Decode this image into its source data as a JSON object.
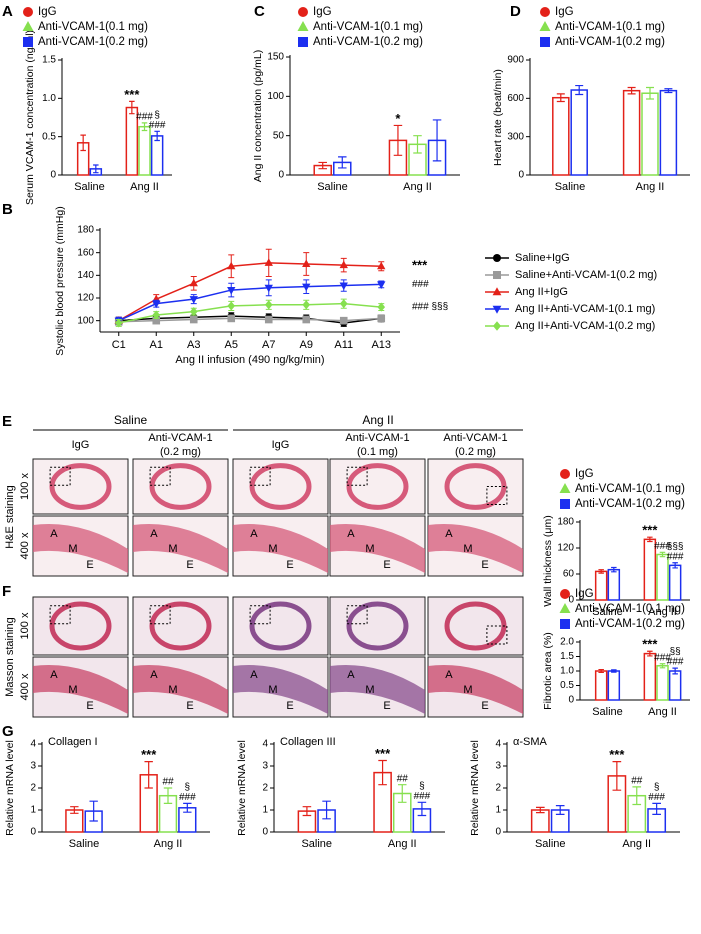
{
  "panel_labels": [
    "A",
    "B",
    "C",
    "D",
    "E",
    "F",
    "G"
  ],
  "histology": {
    "groups": [
      "Saline",
      "Ang II"
    ],
    "columns": [
      [
        "IgG"
      ],
      [
        "Anti-VCAM-1",
        "(0.2 mg)"
      ],
      [
        "IgG"
      ],
      [
        "Anti-VCAM-1",
        "(0.1 mg)"
      ],
      [
        "Anti-VCAM-1",
        "(0.2 mg)"
      ]
    ],
    "magnifications": [
      "100 x",
      "400 x"
    ],
    "stains": [
      "H&E staining",
      "Masson staining"
    ],
    "layers": [
      "A",
      "M",
      "E"
    ]
  },
  "chart_data": [
    {
      "type": "bar",
      "ylabel": "Serum VCAM-1 concentration (ng/ml)",
      "categories": [
        "Saline",
        "Ang II"
      ],
      "ylim": [
        0,
        1.5
      ],
      "yticks": [
        0,
        0.5,
        {
          "value": 1,
          "label": "1.0"
        },
        1.5
      ],
      "legend": "top",
      "series": [
        {
          "name": "IgG",
          "color": "#e32119",
          "marker": "circle",
          "values": [
            0.42,
            0.88
          ],
          "errors": [
            0.1,
            0.08
          ],
          "annotations": [
            null,
            "***"
          ]
        },
        {
          "name": "Anti-VCAM-1(0.1 mg)",
          "color": "#86e04f",
          "marker": "triangle",
          "values": [
            null,
            0.63
          ],
          "errors": [
            null,
            0.05
          ],
          "annotations": [
            null,
            "###"
          ]
        },
        {
          "name": "Anti-VCAM-1(0.2 mg)",
          "color": "#1c2ff0",
          "marker": "square",
          "values": [
            0.08,
            0.51
          ],
          "errors": [
            0.05,
            0.06
          ],
          "annotations": [
            null,
            [
              "§",
              "###"
            ]
          ]
        }
      ]
    },
    {
      "type": "bar",
      "ylabel": "Ang II concentration (pg/mL)",
      "categories": [
        "Saline",
        "Ang II"
      ],
      "ylim": [
        0,
        150
      ],
      "yticks": [
        0,
        50,
        100,
        150
      ],
      "legend": "top",
      "series": [
        {
          "name": "IgG",
          "color": "#e32119",
          "marker": "circle",
          "values": [
            12,
            44
          ],
          "errors": [
            4,
            19
          ],
          "annotations": [
            null,
            "*"
          ]
        },
        {
          "name": "Anti-VCAM-1(0.1 mg)",
          "color": "#86e04f",
          "marker": "triangle",
          "values": [
            null,
            39
          ],
          "errors": [
            null,
            11
          ],
          "annotations": [
            null,
            null
          ]
        },
        {
          "name": "Anti-VCAM-1(0.2 mg)",
          "color": "#1c2ff0",
          "marker": "square",
          "values": [
            16,
            44
          ],
          "errors": [
            7,
            26
          ],
          "annotations": [
            null,
            null
          ]
        }
      ]
    },
    {
      "type": "bar",
      "ylabel": "Heart rate (beat/min)",
      "categories": [
        "Saline",
        "Ang II"
      ],
      "ylim": [
        0,
        900
      ],
      "yticks": [
        0,
        300,
        600,
        900
      ],
      "legend": "top",
      "series": [
        {
          "name": "IgG",
          "color": "#e32119",
          "marker": "circle",
          "values": [
            605,
            660
          ],
          "errors": [
            30,
            25
          ],
          "annotations": [
            null,
            null
          ]
        },
        {
          "name": "Anti-VCAM-1(0.1 mg)",
          "color": "#86e04f",
          "marker": "triangle",
          "values": [
            null,
            640
          ],
          "errors": [
            null,
            45
          ],
          "annotations": [
            null,
            null
          ]
        },
        {
          "name": "Anti-VCAM-1(0.2 mg)",
          "color": "#1c2ff0",
          "marker": "square",
          "values": [
            665,
            660
          ],
          "errors": [
            35,
            15
          ],
          "annotations": [
            null,
            null
          ]
        }
      ]
    },
    {
      "type": "line",
      "ylabel": "Systolic blood pressure (mmHg)",
      "xlabel": "Ang II infusion (490 ng/kg/min)",
      "categories": [
        "C1",
        "A1",
        "A3",
        "A5",
        "A7",
        "A9",
        "A11",
        "A13"
      ],
      "ylim": [
        90,
        180
      ],
      "yticks": [
        100,
        120,
        140,
        160,
        180
      ],
      "legend": "right",
      "series": [
        {
          "name": "Saline+IgG",
          "color": "#000000",
          "marker": "circle",
          "values": [
            100,
            102,
            103,
            104,
            103,
            102,
            98,
            102
          ],
          "errors": [
            3,
            2,
            2,
            3,
            3,
            3,
            3,
            3
          ]
        },
        {
          "name": "Saline+Anti-VCAM-1(0.2 mg)",
          "color": "#9a9a9a",
          "marker": "square",
          "values": [
            99,
            100,
            101,
            102,
            101,
            101,
            100,
            102
          ],
          "errors": [
            2,
            2,
            2,
            2,
            2,
            2,
            2,
            2
          ]
        },
        {
          "name": "Ang II+IgG",
          "color": "#e32119",
          "marker": "triangle",
          "values": [
            100,
            119,
            133,
            148,
            151,
            150,
            149,
            148
          ],
          "errors": [
            3,
            4,
            6,
            10,
            12,
            10,
            6,
            4
          ],
          "annotation": "***"
        },
        {
          "name": "Ang II+Anti-VCAM-1(0.1 mg)",
          "color": "#1c2ff0",
          "marker": "triangle-down",
          "values": [
            100,
            115,
            119,
            127,
            129,
            130,
            131,
            132
          ],
          "errors": [
            3,
            3,
            4,
            6,
            7,
            6,
            5,
            3
          ],
          "annotation": "###"
        },
        {
          "name": "Ang II+Anti-VCAM-1(0.2 mg)",
          "color": "#86e04f",
          "marker": "diamond",
          "values": [
            98,
            105,
            108,
            113,
            114,
            114,
            115,
            112
          ],
          "errors": [
            3,
            3,
            3,
            4,
            4,
            4,
            4,
            3
          ],
          "annotation": "### §§§"
        }
      ]
    },
    {
      "type": "bar",
      "ylabel": "Wall thickness (μm)",
      "categories": [
        "Saline",
        "Ang II"
      ],
      "ylim": [
        0,
        180
      ],
      "yticks": [
        0,
        60,
        120,
        180
      ],
      "legend": "top",
      "series": [
        {
          "name": "IgG",
          "color": "#e32119",
          "marker": "circle",
          "values": [
            66,
            140
          ],
          "errors": [
            4,
            5
          ],
          "annotations": [
            null,
            "***"
          ]
        },
        {
          "name": "Anti-VCAM-1(0.1 mg)",
          "color": "#86e04f",
          "marker": "triangle",
          "values": [
            null,
            105
          ],
          "errors": [
            null,
            5
          ],
          "annotations": [
            null,
            "###"
          ]
        },
        {
          "name": "Anti-VCAM-1(0.2 mg)",
          "color": "#1c2ff0",
          "marker": "square",
          "values": [
            70,
            80
          ],
          "errors": [
            5,
            6
          ],
          "annotations": [
            null,
            [
              "§§§",
              "###"
            ]
          ]
        }
      ]
    },
    {
      "type": "bar",
      "ylabel": "Fibrotic area (%)",
      "categories": [
        "Saline",
        "Ang II"
      ],
      "ylim": [
        0,
        2
      ],
      "yticks": [
        0,
        0.5,
        {
          "value": 1,
          "label": "1.0"
        },
        1.5,
        {
          "value": 2,
          "label": "2.0"
        }
      ],
      "legend": "top",
      "series": [
        {
          "name": "IgG",
          "color": "#e32119",
          "marker": "circle",
          "values": [
            1.0,
            1.6
          ],
          "errors": [
            0.05,
            0.08
          ],
          "annotations": [
            null,
            "***"
          ]
        },
        {
          "name": "Anti-VCAM-1(0.1 mg)",
          "color": "#86e04f",
          "marker": "triangle",
          "values": [
            null,
            1.18
          ],
          "errors": [
            null,
            0.07
          ],
          "annotations": [
            null,
            "###"
          ]
        },
        {
          "name": "Anti-VCAM-1(0.2 mg)",
          "color": "#1c2ff0",
          "marker": "square",
          "values": [
            1.0,
            1.0
          ],
          "errors": [
            0.04,
            0.1
          ],
          "annotations": [
            null,
            [
              "§§",
              "###"
            ]
          ]
        }
      ]
    },
    {
      "type": "bar",
      "title": "Collagen I",
      "ylabel": "Relative mRNA level",
      "categories": [
        "Saline",
        "Ang II"
      ],
      "ylim": [
        0,
        4
      ],
      "yticks": [
        0,
        1,
        2,
        3,
        4
      ],
      "series": [
        {
          "name": "IgG",
          "color": "#e32119",
          "values": [
            1.0,
            2.6
          ],
          "errors": [
            0.15,
            0.6
          ],
          "annotations": [
            null,
            "***"
          ]
        },
        {
          "name": "Anti-VCAM-1(0.1 mg)",
          "color": "#86e04f",
          "values": [
            null,
            1.65
          ],
          "errors": [
            null,
            0.35
          ],
          "annotations": [
            null,
            "##"
          ]
        },
        {
          "name": "Anti-VCAM-1(0.2 mg)",
          "color": "#1c2ff0",
          "values": [
            0.95,
            1.1
          ],
          "errors": [
            0.45,
            0.2
          ],
          "annotations": [
            null,
            [
              "§",
              "###"
            ]
          ]
        }
      ]
    },
    {
      "type": "bar",
      "title": "Collagen III",
      "ylabel": "Relative mRNA level",
      "categories": [
        "Saline",
        "Ang II"
      ],
      "ylim": [
        0,
        4
      ],
      "yticks": [
        0,
        1,
        2,
        3,
        4
      ],
      "series": [
        {
          "name": "IgG",
          "color": "#e32119",
          "values": [
            0.95,
            2.7
          ],
          "errors": [
            0.2,
            0.55
          ],
          "annotations": [
            null,
            "***"
          ]
        },
        {
          "name": "Anti-VCAM-1(0.1 mg)",
          "color": "#86e04f",
          "values": [
            null,
            1.75
          ],
          "errors": [
            null,
            0.4
          ],
          "annotations": [
            null,
            "##"
          ]
        },
        {
          "name": "Anti-VCAM-1(0.2 mg)",
          "color": "#1c2ff0",
          "values": [
            1.0,
            1.05
          ],
          "errors": [
            0.4,
            0.3
          ],
          "annotations": [
            null,
            [
              "§",
              "###"
            ]
          ]
        }
      ]
    },
    {
      "type": "bar",
      "title": "α-SMA",
      "ylabel": "Relative mRNA level",
      "categories": [
        "Saline",
        "Ang II"
      ],
      "ylim": [
        0,
        4
      ],
      "yticks": [
        0,
        1,
        2,
        3,
        4
      ],
      "series": [
        {
          "name": "IgG",
          "color": "#e32119",
          "values": [
            1.0,
            2.55
          ],
          "errors": [
            0.12,
            0.65
          ],
          "annotations": [
            null,
            "***"
          ]
        },
        {
          "name": "Anti-VCAM-1(0.1 mg)",
          "color": "#86e04f",
          "values": [
            null,
            1.65
          ],
          "errors": [
            null,
            0.4
          ],
          "annotations": [
            null,
            "##"
          ]
        },
        {
          "name": "Anti-VCAM-1(0.2 mg)",
          "color": "#1c2ff0",
          "values": [
            1.0,
            1.05
          ],
          "errors": [
            0.2,
            0.25
          ],
          "annotations": [
            null,
            [
              "§",
              "###"
            ]
          ]
        }
      ]
    }
  ]
}
